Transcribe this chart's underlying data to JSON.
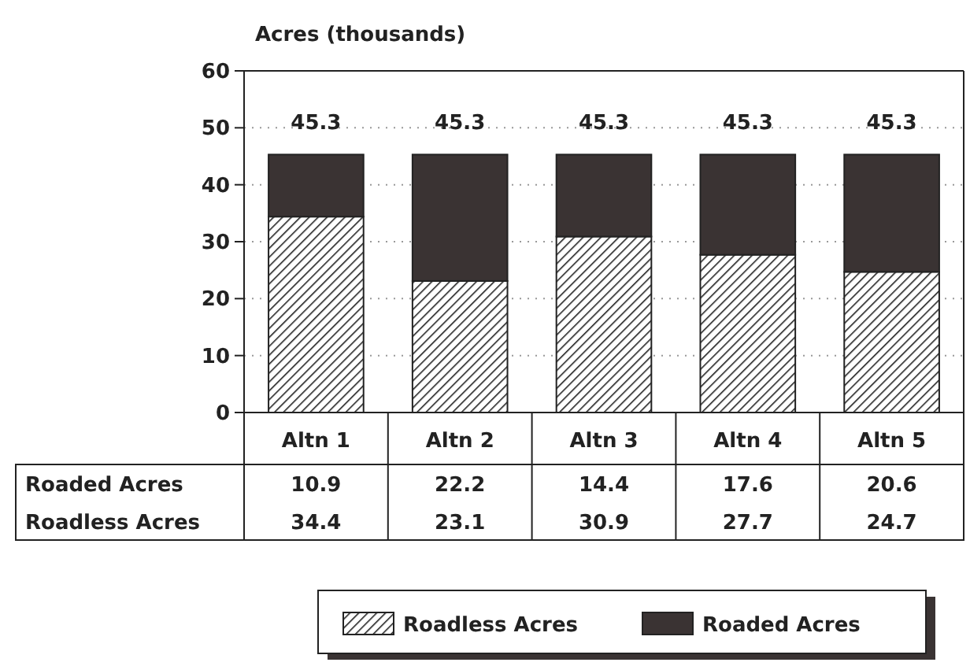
{
  "chart_data": {
    "type": "bar",
    "stacked": true,
    "ylabel": "Acres (thousands)",
    "categories": [
      "Altn 1",
      "Altn 2",
      "Altn 3",
      "Altn 4",
      "Altn 5"
    ],
    "series": [
      {
        "name": "Roadless Acres",
        "color": "#222222",
        "values": [
          34.4,
          23.1,
          30.9,
          27.7,
          24.7
        ]
      },
      {
        "name": "Roaded Acres",
        "color": "#3a3333",
        "values": [
          10.9,
          22.2,
          14.4,
          17.6,
          20.6
        ]
      }
    ],
    "totals": [
      "45.3",
      "45.3",
      "45.3",
      "45.3",
      "45.3"
    ],
    "ylim": [
      0,
      60
    ],
    "yticks": [
      0,
      10,
      20,
      30,
      40,
      50,
      60
    ],
    "grid": "y",
    "legend": "bottom",
    "data_labels": true
  }
}
